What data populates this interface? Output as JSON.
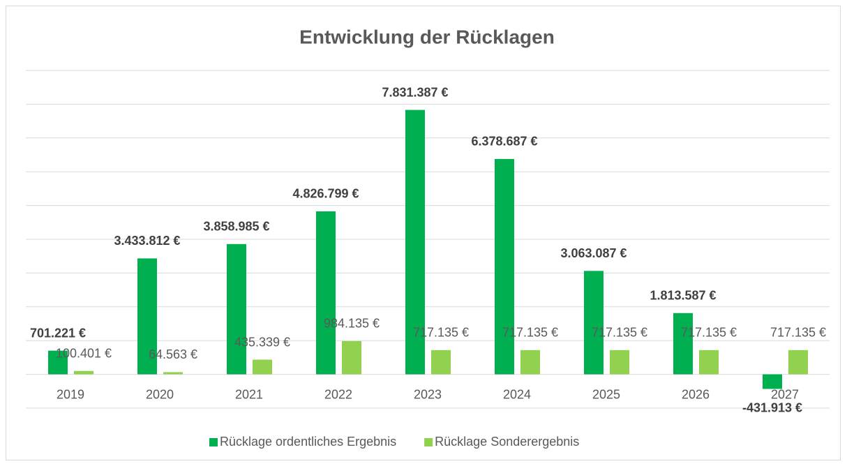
{
  "chart_data": {
    "type": "bar",
    "title": "Entwicklung der Rücklagen",
    "categories": [
      "2019",
      "2020",
      "2021",
      "2022",
      "2023",
      "2024",
      "2025",
      "2026",
      "2027"
    ],
    "series": [
      {
        "name": "Rücklage ordentliches Ergebnis",
        "color": "#00b050",
        "values": [
          701221,
          3433812,
          3858985,
          4826799,
          7831387,
          6378687,
          3063087,
          1813587,
          -431913
        ],
        "value_labels": [
          "701.221 €",
          "3.433.812 €",
          "3.858.985 €",
          "4.826.799 €",
          "7.831.387 €",
          "6.378.687 €",
          "3.063.087 €",
          "1.813.587 €",
          "-431.913 €"
        ]
      },
      {
        "name": "Rücklage Sonderergebnis",
        "color": "#92d050",
        "values": [
          100401,
          64563,
          435339,
          984135,
          717135,
          717135,
          717135,
          717135,
          717135
        ],
        "value_labels": [
          "100.401 €",
          "64.563 €",
          "435.339 €",
          "984.135 €",
          "717.135 €",
          "717.135 €",
          "717.135 €",
          "717.135 €",
          "717.135 €"
        ]
      }
    ],
    "ylim": [
      -1000000,
      9000000
    ],
    "yticks": [
      -1000000,
      0,
      1000000,
      2000000,
      3000000,
      4000000,
      5000000,
      6000000,
      7000000,
      8000000,
      9000000
    ],
    "grid": true,
    "legend": "bottom"
  }
}
